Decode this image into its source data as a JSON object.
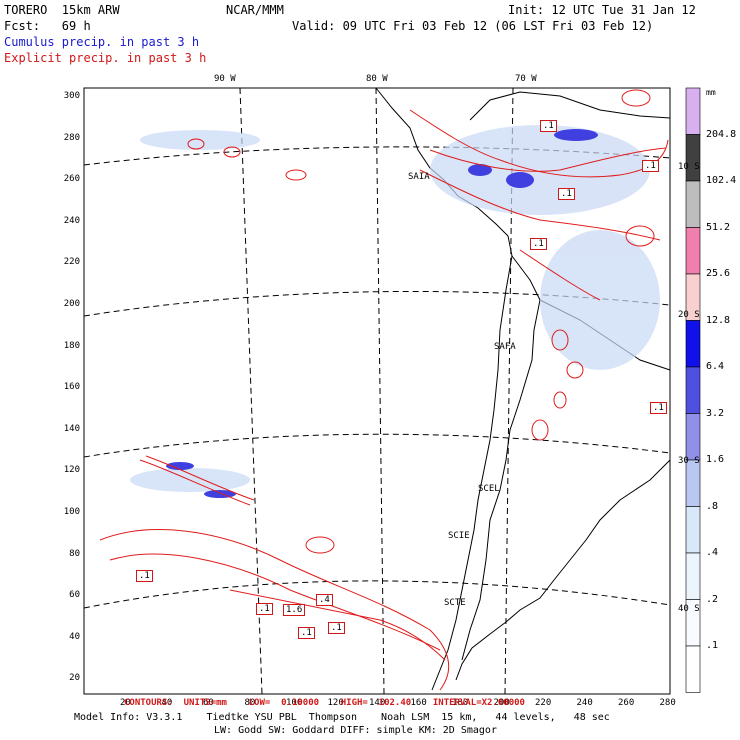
{
  "header": {
    "model": "TORERO  15km ARW",
    "center": "NCAR/MMM",
    "init": "Init: 12 UTC Tue 31 Jan 12",
    "fcst_label": "Fcst:   69 h",
    "valid": "Valid: 09 UTC Fri 03 Feb 12 (06 LST Fri 03 Feb 12)",
    "line_blue": "Cumulus precip. in past 3 h",
    "line_red": "Explicit precip. in past 3 h"
  },
  "map": {
    "lon_labels": [
      "90 W",
      "80 W",
      "70 W"
    ],
    "lat_labels": [
      "10 S",
      "20 S",
      "30 S",
      "40 S"
    ],
    "y_ticks": [
      "300",
      "280",
      "260",
      "240",
      "220",
      "200",
      "180",
      "160",
      "140",
      "120",
      "100",
      "80",
      "60",
      "40",
      "20"
    ],
    "x_ticks": [
      "20",
      "40",
      "60",
      "80",
      "100",
      "120",
      "140",
      "160",
      "180",
      "200",
      "220",
      "240",
      "260",
      "280"
    ],
    "stations": [
      "SAIA",
      "SAFA",
      "SCEL",
      "SCIE",
      "SCTE"
    ],
    "contour_boxes": [
      ".1",
      ".1",
      ".1",
      ".1",
      ".1",
      ".1",
      ".1",
      ".4",
      ".1",
      "1.6",
      ".1"
    ]
  },
  "colorbar": {
    "unit": "mm",
    "labels": [
      "204.8",
      "102.4",
      "51.2",
      "25.6",
      "12.8",
      "6.4",
      "3.2",
      "1.6",
      ".8",
      ".4",
      ".2",
      ".1"
    ],
    "colors": [
      "#d8b0f0",
      "#404040",
      "#bdbdbd",
      "#f07fae",
      "#f8d0d0",
      "#1010e8",
      "#5050e0",
      "#9090e8",
      "#b8c8f0",
      "#d8e8f8",
      "#ecf4fc",
      "#f8fbff",
      "#ffffff"
    ]
  },
  "footer": {
    "contours": "CONTOURS:  UNITS=mm    LOW=  0.10000    HIGH=  102.40    INTERVAL=X2.00000",
    "model_info": "Model Info: V3.3.1    Tiedtke YSU PBL  Thompson    Noah LSM  15 km,   44 levels,   48 sec",
    "model_info2": "LW: Godd SW: Goddard DIFF: simple KM: 2D Smagor"
  }
}
